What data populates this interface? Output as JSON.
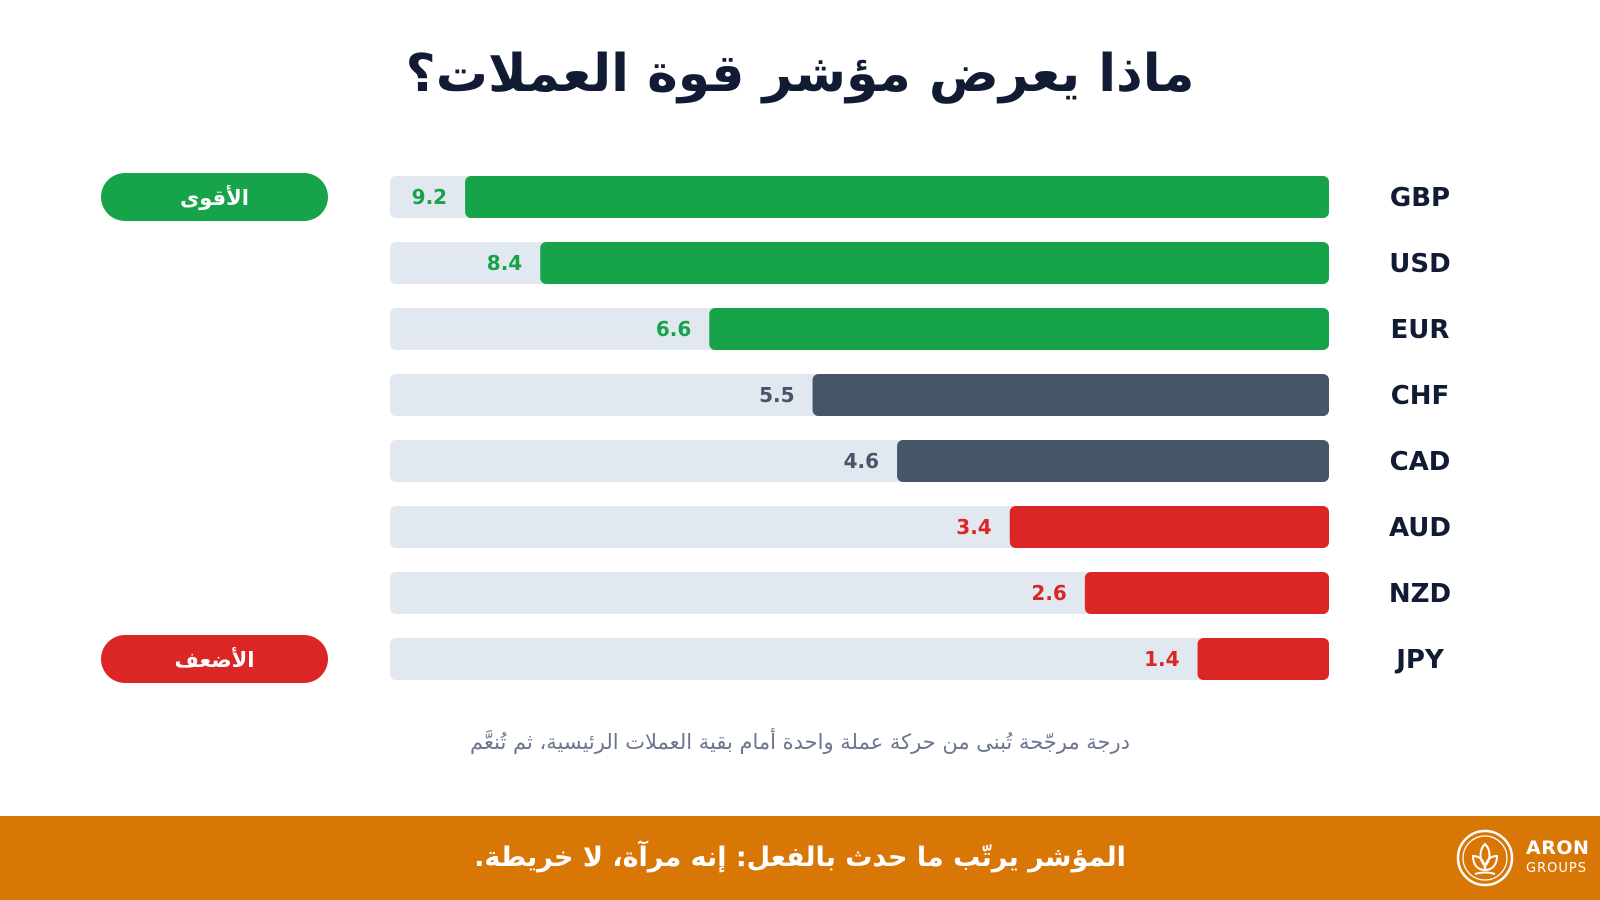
{
  "chart_data": {
    "type": "bar",
    "orientation": "horizontal",
    "title": "ماذا يعرض مؤشر قوة العملات؟",
    "subtitle": "درجة مرجّحة تُبنى من حركة عملة واحدة أمام بقية العملات الرئيسية، ثم تُنعَّم",
    "categories": [
      "GBP",
      "USD",
      "EUR",
      "CHF",
      "CAD",
      "AUD",
      "NZD",
      "JPY"
    ],
    "values": [
      9.2,
      8.4,
      6.6,
      5.5,
      4.6,
      3.4,
      2.6,
      1.4
    ],
    "xlim": [
      0,
      10
    ],
    "grid": false,
    "colors": {
      "strong": "#16a34a",
      "neutral": "#475569",
      "weak": "#dc2626",
      "track": "#e2e8f0"
    },
    "value_color_groups": [
      "strong",
      "strong",
      "strong",
      "neutral",
      "neutral",
      "weak",
      "weak",
      "weak"
    ],
    "badges": [
      {
        "label": "الأقوى",
        "category": "GBP",
        "color": "#16a34a"
      },
      {
        "label": "الأضعف",
        "category": "JPY",
        "color": "#dc2626"
      }
    ]
  },
  "footer": {
    "text": "المؤشر يرتّب ما حدث بالفعل: إنه مرآة، لا خريطة.",
    "background": "#d97706"
  },
  "logo": {
    "name": "ARON",
    "sub": "GROUPS"
  }
}
